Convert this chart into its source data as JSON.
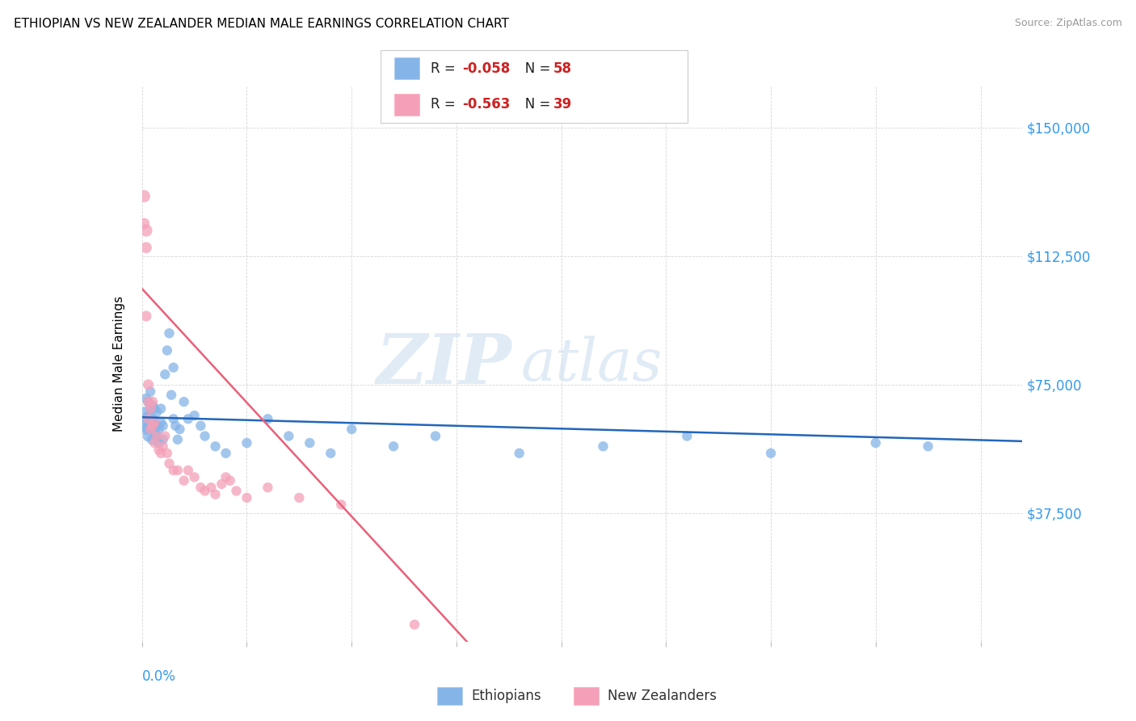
{
  "title": "ETHIOPIAN VS NEW ZEALANDER MEDIAN MALE EARNINGS CORRELATION CHART",
  "source": "Source: ZipAtlas.com",
  "ylabel": "Median Male Earnings",
  "xlim": [
    0.0,
    0.42
  ],
  "ylim": [
    0,
    162000
  ],
  "watermark_zip": "ZIP",
  "watermark_atlas": "atlas",
  "blue_color": "#85B4E8",
  "pink_color": "#F4A0B8",
  "blue_line_color": "#2266BB",
  "pink_line_color": "#E8607A",
  "ethiopians_label": "Ethiopians",
  "nz_label": "New Zealanders",
  "ethiopians_x": [
    0.001,
    0.001,
    0.002,
    0.002,
    0.002,
    0.003,
    0.003,
    0.003,
    0.003,
    0.004,
    0.004,
    0.004,
    0.005,
    0.005,
    0.005,
    0.005,
    0.006,
    0.006,
    0.006,
    0.007,
    0.007,
    0.007,
    0.008,
    0.008,
    0.009,
    0.009,
    0.01,
    0.01,
    0.011,
    0.012,
    0.013,
    0.014,
    0.015,
    0.015,
    0.016,
    0.017,
    0.018,
    0.02,
    0.022,
    0.025,
    0.028,
    0.03,
    0.035,
    0.04,
    0.05,
    0.06,
    0.07,
    0.08,
    0.09,
    0.1,
    0.12,
    0.14,
    0.18,
    0.22,
    0.26,
    0.3,
    0.35,
    0.375
  ],
  "ethiopians_y": [
    63000,
    67000,
    62000,
    65000,
    71000,
    60000,
    63000,
    66000,
    70000,
    64000,
    68000,
    73000,
    59000,
    62000,
    65000,
    69000,
    61000,
    64000,
    68000,
    60000,
    63000,
    67000,
    58000,
    62000,
    64000,
    68000,
    59000,
    63000,
    78000,
    85000,
    90000,
    72000,
    65000,
    80000,
    63000,
    59000,
    62000,
    70000,
    65000,
    66000,
    63000,
    60000,
    57000,
    55000,
    58000,
    65000,
    60000,
    58000,
    55000,
    62000,
    57000,
    60000,
    55000,
    57000,
    60000,
    55000,
    58000,
    57000
  ],
  "ethiopians_sizes": [
    120,
    90,
    100,
    90,
    80,
    100,
    90,
    80,
    90,
    100,
    90,
    80,
    100,
    90,
    80,
    80,
    90,
    80,
    80,
    90,
    80,
    80,
    80,
    80,
    80,
    80,
    80,
    80,
    80,
    80,
    80,
    80,
    80,
    80,
    80,
    80,
    80,
    80,
    80,
    80,
    80,
    80,
    80,
    80,
    80,
    80,
    80,
    80,
    80,
    80,
    80,
    80,
    80,
    80,
    80,
    80,
    80,
    80
  ],
  "nz_x": [
    0.001,
    0.001,
    0.002,
    0.002,
    0.002,
    0.003,
    0.003,
    0.003,
    0.004,
    0.004,
    0.005,
    0.005,
    0.006,
    0.006,
    0.007,
    0.008,
    0.009,
    0.01,
    0.011,
    0.012,
    0.013,
    0.015,
    0.017,
    0.02,
    0.022,
    0.025,
    0.028,
    0.03,
    0.033,
    0.035,
    0.038,
    0.04,
    0.042,
    0.045,
    0.05,
    0.06,
    0.075,
    0.095,
    0.13
  ],
  "nz_y": [
    130000,
    122000,
    120000,
    115000,
    95000,
    75000,
    70000,
    65000,
    68000,
    62000,
    70000,
    63000,
    64000,
    58000,
    60000,
    56000,
    55000,
    57000,
    60000,
    55000,
    52000,
    50000,
    50000,
    47000,
    50000,
    48000,
    45000,
    44000,
    45000,
    43000,
    46000,
    48000,
    47000,
    44000,
    42000,
    45000,
    42000,
    40000,
    5000
  ],
  "nz_sizes": [
    120,
    100,
    120,
    100,
    90,
    90,
    90,
    80,
    80,
    80,
    90,
    80,
    80,
    80,
    80,
    80,
    80,
    80,
    80,
    80,
    80,
    80,
    80,
    80,
    80,
    80,
    80,
    80,
    80,
    80,
    80,
    80,
    80,
    80,
    80,
    80,
    80,
    80,
    80
  ],
  "eth_line_x0": 0.0,
  "eth_line_x1": 0.42,
  "eth_line_y0": 65500,
  "eth_line_y1": 58500,
  "nz_line_x0": 0.0,
  "nz_line_x1": 0.155,
  "nz_line_y0": 103000,
  "nz_line_y1": 0,
  "ytick_vals": [
    0,
    37500,
    75000,
    112500,
    150000
  ],
  "ytick_labels": [
    "",
    "$37,500",
    "$75,000",
    "$112,500",
    "$150,000"
  ],
  "ytick_color": "#3399EE",
  "xtick_label_color": "#3399EE",
  "legend_r1_r": "R = ",
  "legend_r1_val": "-0.058",
  "legend_r1_n": "   N = ",
  "legend_r1_nval": "58",
  "legend_r2_r": "R = ",
  "legend_r2_val": "-0.563",
  "legend_r2_n": "   N = ",
  "legend_r2_nval": "39",
  "title_fontsize": 11,
  "source_fontsize": 9,
  "legend_fontsize": 12
}
